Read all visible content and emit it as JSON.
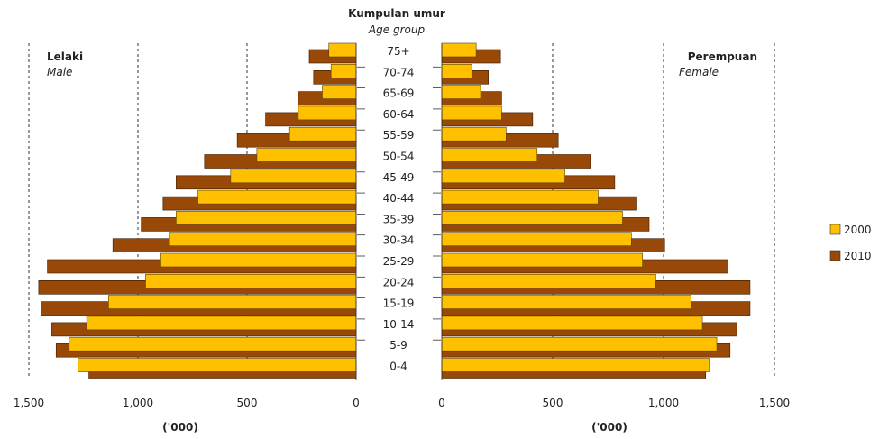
{
  "chart_data": {
    "type": "bar",
    "title": "Kumpulan umur",
    "subtitle": "Age group",
    "left_panel": {
      "label": "Lelaki",
      "label_en": "Male"
    },
    "right_panel": {
      "label": "Perempuan",
      "label_en": "Female"
    },
    "categories": [
      "75+",
      "70-74",
      "65-69",
      "60-64",
      "55-59",
      "50-54",
      "45-49",
      "40-44",
      "35-39",
      "30-34",
      "25-29",
      "20-24",
      "15-19",
      "10-14",
      "5-9",
      "0-4"
    ],
    "xlim": [
      0,
      1500
    ],
    "x_ticks": [
      0,
      500,
      1000,
      1500
    ],
    "x_tick_labels_left": [
      "0",
      "500",
      "1,000",
      "1,500"
    ],
    "x_tick_labels_right": [
      "0",
      "500",
      "1,000",
      "1,500"
    ],
    "xlabel": "('000)",
    "legend": {
      "placement": "right",
      "items": [
        "2000",
        "2010"
      ]
    },
    "colors": {
      "2000": "#FFC000",
      "2010": "#984807"
    },
    "grid": "dashed vertical at 500, 1,000, 1,500",
    "series": [
      {
        "name": "2000",
        "male": [
          125,
          115,
          155,
          265,
          305,
          455,
          575,
          725,
          825,
          855,
          895,
          965,
          1135,
          1235,
          1315,
          1275
        ],
        "female": [
          155,
          135,
          175,
          270,
          290,
          430,
          555,
          705,
          815,
          855,
          905,
          965,
          1125,
          1175,
          1240,
          1205
        ]
      },
      {
        "name": "2010",
        "male": [
          215,
          195,
          265,
          415,
          545,
          695,
          825,
          885,
          985,
          1115,
          1415,
          1455,
          1445,
          1395,
          1375,
          1225
        ],
        "female": [
          265,
          210,
          270,
          410,
          525,
          670,
          780,
          880,
          935,
          1005,
          1290,
          1390,
          1390,
          1330,
          1300,
          1190
        ]
      }
    ]
  }
}
